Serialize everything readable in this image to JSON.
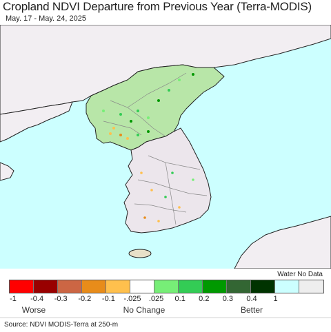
{
  "title": "Cropland NDVI Departure from Previous Year (Terra-MODIS)",
  "subtitle": "May. 17 - May. 24, 2025",
  "legend": {
    "water_label": "Water No Data",
    "ticks": [
      "-1",
      "-0.4",
      "-0.3",
      "-0.2",
      "-0.1",
      "-.025",
      ".025",
      "0.1",
      "0.2",
      "0.3",
      "0.4",
      "1"
    ],
    "categories": {
      "worse": "Worse",
      "no_change": "No Change",
      "better": "Better"
    },
    "colors": [
      "#ff0000",
      "#990000",
      "#cc6644",
      "#e88c1a",
      "#ffc04d",
      "#ffffff",
      "#77ee77",
      "#33cc55",
      "#009900",
      "#336633",
      "#003300",
      "#ccffff",
      "#eeeeee"
    ]
  },
  "map": {
    "land_color": "#f2eef2",
    "water_color": "#ccffff",
    "colors_present": [
      "green",
      "yellow",
      "orange"
    ]
  },
  "source": "Source: NDVI MODIS-Terra at 250-m"
}
